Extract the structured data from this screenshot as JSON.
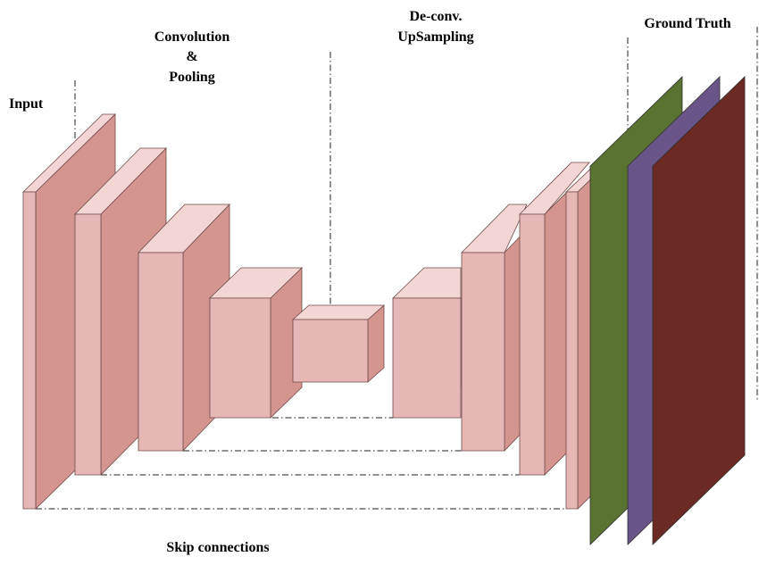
{
  "labels": {
    "input": "Input",
    "convolution_line1": "Convolution",
    "convolution_line2": "&",
    "convolution_line3": "Pooling",
    "deconv_line1": "De-conv.",
    "deconv_line2": "UpSampling",
    "ground_truth": "Ground Truth",
    "skip_connections": "Skip connections"
  },
  "colors": {
    "block_front": "#e6b7b4",
    "block_top": "#f3d6d4",
    "block_side": "#d4958f",
    "ground_truth_green": "#5a7331",
    "ground_truth_purple": "#6a5589",
    "ground_truth_red": "#6b2a24"
  }
}
